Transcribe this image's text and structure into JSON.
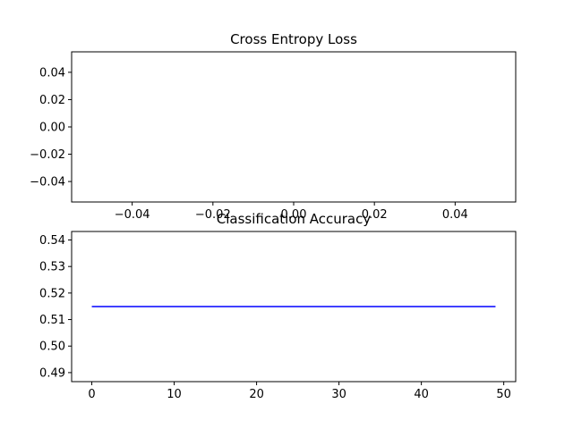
{
  "chart_data": [
    {
      "type": "line",
      "title": "Cross Entropy Loss",
      "xlabel": "",
      "ylabel": "",
      "xlim": [
        -0.055,
        0.055
      ],
      "ylim": [
        -0.055,
        0.055
      ],
      "xticks": [
        -0.04,
        -0.02,
        0.0,
        0.02,
        0.04
      ],
      "yticks": [
        -0.04,
        -0.02,
        0.0,
        0.02,
        0.04
      ],
      "xtick_labels": [
        "−0.04",
        "−0.02",
        "0.00",
        "0.02",
        "0.04"
      ],
      "ytick_labels": [
        "−0.04",
        "−0.02",
        "0.00",
        "0.02",
        "0.04"
      ],
      "grid": false,
      "series": []
    },
    {
      "type": "line",
      "title": "Classification Accuracy",
      "xlabel": "",
      "ylabel": "",
      "xlim": [
        -2.45,
        51.45
      ],
      "ylim": [
        0.4866,
        0.5432
      ],
      "xticks": [
        0,
        10,
        20,
        30,
        40,
        50
      ],
      "yticks": [
        0.49,
        0.5,
        0.51,
        0.52,
        0.53,
        0.54
      ],
      "xtick_labels": [
        "0",
        "10",
        "20",
        "30",
        "40",
        "50"
      ],
      "ytick_labels": [
        "0.49",
        "0.50",
        "0.51",
        "0.52",
        "0.53",
        "0.54"
      ],
      "grid": false,
      "series": [
        {
          "color": "#0000ff",
          "x": [
            0,
            49
          ],
          "y": [
            0.5149,
            0.5149
          ]
        }
      ]
    }
  ]
}
